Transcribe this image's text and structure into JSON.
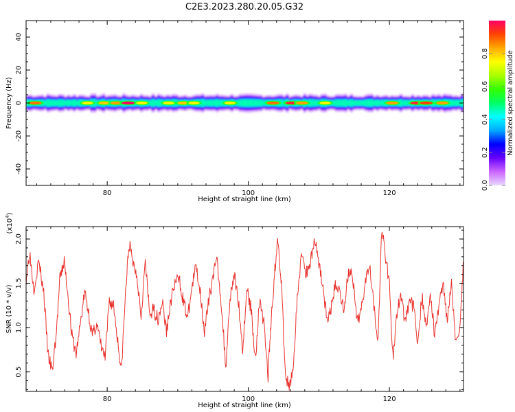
{
  "title": "C2E3.2023.280.20.05.G32",
  "chart_data": [
    {
      "type": "heatmap",
      "panel": "spectrogram",
      "xlabel": "Height of straight line (km)",
      "ylabel": "Frequency (Hz)",
      "xlim": [
        68.5,
        130.5
      ],
      "ylim": [
        -50,
        50
      ],
      "x_ticks": [
        80,
        100,
        120
      ],
      "x_tick_labels": [
        "80",
        "100",
        "120"
      ],
      "y_ticks": [
        -40,
        -20,
        0,
        20,
        40
      ],
      "y_tick_labels": [
        "-40",
        "-20",
        "0",
        "20",
        "40"
      ],
      "band_center_hz": 0,
      "band_halfwidth_hz": 4,
      "core_halfwidth_hz": 1.5,
      "hotspots": [
        {
          "x": 69.8,
          "a": 0.85
        },
        {
          "x": 77.2,
          "a": 0.7
        },
        {
          "x": 79.6,
          "a": 0.75
        },
        {
          "x": 81.3,
          "a": 0.8
        },
        {
          "x": 83.0,
          "a": 1.0
        },
        {
          "x": 84.9,
          "a": 0.7
        },
        {
          "x": 88.7,
          "a": 0.7
        },
        {
          "x": 90.8,
          "a": 0.75
        },
        {
          "x": 92.3,
          "a": 0.7
        },
        {
          "x": 97.4,
          "a": 0.7
        },
        {
          "x": 103.5,
          "a": 0.85
        },
        {
          "x": 106.2,
          "a": 0.95
        },
        {
          "x": 107.6,
          "a": 0.8
        },
        {
          "x": 110.9,
          "a": 0.7
        },
        {
          "x": 120.4,
          "a": 0.8
        },
        {
          "x": 123.9,
          "a": 0.95
        },
        {
          "x": 125.2,
          "a": 0.9
        },
        {
          "x": 127.5,
          "a": 0.8
        }
      ],
      "colorbar": {
        "label": "Normalized spectral amplitude",
        "ticks": [
          0.0,
          0.2,
          0.4,
          0.6,
          0.8
        ],
        "tick_labels": [
          "0.0",
          "0.2",
          "0.4",
          "0.6",
          "0.8"
        ],
        "colors": [
          "#e8d8ff",
          "#cc66ff",
          "#6600ff",
          "#0000ff",
          "#00aaff",
          "#00ffff",
          "#00ff66",
          "#33ff00",
          "#aaff00",
          "#ffff00",
          "#ffaa00",
          "#ff4400",
          "#ff0066"
        ]
      }
    },
    {
      "type": "line",
      "panel": "snr",
      "xlabel": "Height of straight line (km)",
      "ylabel": "SNR (10 * v/v)",
      "yscale_label": "(x10",
      "yscale_exp": "4",
      "yscale_close": ")",
      "xlim": [
        68.5,
        130.5
      ],
      "ylim": [
        0.28,
        2.14
      ],
      "x_ticks": [
        80,
        100,
        120
      ],
      "x_tick_labels": [
        "80",
        "100",
        "120"
      ],
      "y_ticks": [
        0.5,
        1.0,
        1.5,
        2.0
      ],
      "y_tick_labels": [
        "0.5",
        "1.0",
        "1.5",
        "2.0"
      ],
      "line_color": "#e8322e",
      "series": [
        {
          "x": [
            68.5,
            69.0,
            69.6,
            70.3,
            71.0,
            71.6,
            72.2,
            72.8,
            73.3,
            73.9,
            74.4,
            75.0,
            75.6,
            76.2,
            76.8,
            77.3,
            77.9,
            78.5,
            79.1,
            79.7,
            80.3,
            80.9,
            81.5,
            82.0,
            82.6,
            83.1,
            83.6,
            84.2,
            84.8,
            85.4,
            86.0,
            86.6,
            87.2,
            87.8,
            88.4,
            89.0,
            89.6,
            90.2,
            90.8,
            91.4,
            92.0,
            92.6,
            93.2,
            93.8,
            94.4,
            95.0,
            95.6,
            96.2,
            96.8,
            97.4,
            98.0,
            98.6,
            99.2,
            99.8,
            100.4,
            101.0,
            101.6,
            102.2,
            102.8,
            103.2,
            103.7,
            104.2,
            104.7,
            105.2,
            105.8,
            106.4,
            107.0,
            107.6,
            108.2,
            108.8,
            109.4,
            110.0,
            110.6,
            111.2,
            111.8,
            112.4,
            113.0,
            113.6,
            114.2,
            114.8,
            115.4,
            116.0,
            116.6,
            117.2,
            117.8,
            118.4,
            118.9,
            119.4,
            120.0,
            120.5,
            121.0,
            121.6,
            122.2,
            122.8,
            123.4,
            124.0,
            124.6,
            125.2,
            125.8,
            126.4,
            127.0,
            127.6,
            128.2,
            128.8,
            129.4,
            130.0,
            130.5
          ],
          "y": [
            1.55,
            1.85,
            1.45,
            1.75,
            1.4,
            0.7,
            0.5,
            0.95,
            1.55,
            1.75,
            1.4,
            0.9,
            0.7,
            1.05,
            1.4,
            1.2,
            0.9,
            1.05,
            0.8,
            0.65,
            1.3,
            1.25,
            0.85,
            0.5,
            1.4,
            1.95,
            1.75,
            1.6,
            1.15,
            1.75,
            1.15,
            1.2,
            1.1,
            1.3,
            0.95,
            1.3,
            1.5,
            1.55,
            1.3,
            1.1,
            1.45,
            1.7,
            1.4,
            0.95,
            1.3,
            1.6,
            1.75,
            1.25,
            0.55,
            1.35,
            1.6,
            1.3,
            0.75,
            1.45,
            1.2,
            0.65,
            1.3,
            1.05,
            0.45,
            1.05,
            1.6,
            2.02,
            1.5,
            0.5,
            0.3,
            0.6,
            1.4,
            1.85,
            1.6,
            1.75,
            2.0,
            1.75,
            1.45,
            1.05,
            1.25,
            1.5,
            1.4,
            1.2,
            1.65,
            1.55,
            1.05,
            1.2,
            1.55,
            1.75,
            1.25,
            0.85,
            2.1,
            1.85,
            1.5,
            0.65,
            1.1,
            1.4,
            1.05,
            1.3,
            1.25,
            0.85,
            1.35,
            1.0,
            1.4,
            0.9,
            1.25,
            1.5,
            1.1,
            1.55,
            0.8,
            1.05,
            1.75
          ]
        }
      ]
    }
  ]
}
